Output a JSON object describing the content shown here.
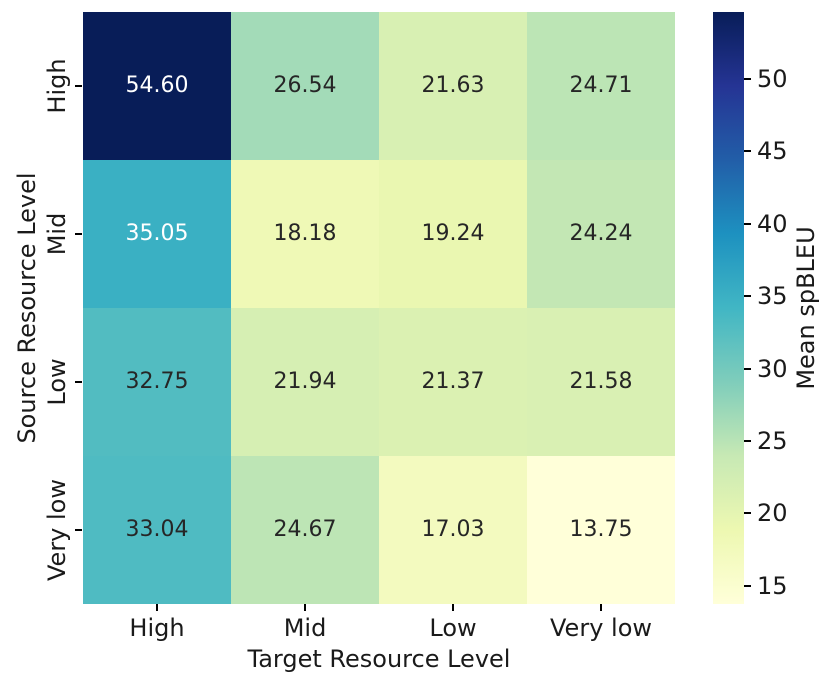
{
  "chart_data": {
    "type": "heatmap",
    "title": "",
    "xlabel": "Target Resource Level",
    "ylabel": "Source Resource Level",
    "x_categories": [
      "High",
      "Mid",
      "Low",
      "Very low"
    ],
    "y_categories": [
      "High",
      "Mid",
      "Low",
      "Very low"
    ],
    "values": [
      [
        54.6,
        26.54,
        21.63,
        24.71
      ],
      [
        35.05,
        18.18,
        19.24,
        24.24
      ],
      [
        32.75,
        21.94,
        21.37,
        21.58
      ],
      [
        33.04,
        24.67,
        17.03,
        13.75
      ]
    ],
    "annotations": [
      [
        "54.60",
        "26.54",
        "21.63",
        "24.71"
      ],
      [
        "35.05",
        "18.18",
        "19.24",
        "24.24"
      ],
      [
        "32.75",
        "21.94",
        "21.37",
        "21.58"
      ],
      [
        "33.04",
        "24.67",
        "17.03",
        "13.75"
      ]
    ],
    "cell_colors": [
      [
        "#081d58",
        "#a3dbb8",
        "#d8f0b3",
        "#bce5b5"
      ],
      [
        "#3ab0c3",
        "#eff9b6",
        "#eaf7b1",
        "#c3e7b4"
      ],
      [
        "#52bcc1",
        "#d6efb3",
        "#dbf1b2",
        "#d9f0b3"
      ],
      [
        "#4fbbc2",
        "#bde5b5",
        "#f3fabf",
        "#ffffd9"
      ]
    ],
    "text_colors": [
      [
        "#ffffff",
        "#262626",
        "#262626",
        "#262626"
      ],
      [
        "#ffffff",
        "#262626",
        "#262626",
        "#262626"
      ],
      [
        "#262626",
        "#262626",
        "#262626",
        "#262626"
      ],
      [
        "#262626",
        "#262626",
        "#262626",
        "#262626"
      ]
    ],
    "grid": false,
    "colormap": "YlGnBu",
    "colorbar": {
      "label": "Mean spBLEU",
      "position": "right",
      "ticks": [
        50,
        45,
        40,
        35,
        30,
        25,
        20,
        15
      ],
      "vmin": 13.75,
      "vmax": 54.6,
      "gradient_stops_bottom_to_top": [
        "#ffffd9",
        "#edf8b1",
        "#c7e9b4",
        "#7fcdbb",
        "#41b6c4",
        "#1d91c0",
        "#225ea8",
        "#253494",
        "#081d58"
      ]
    }
  }
}
